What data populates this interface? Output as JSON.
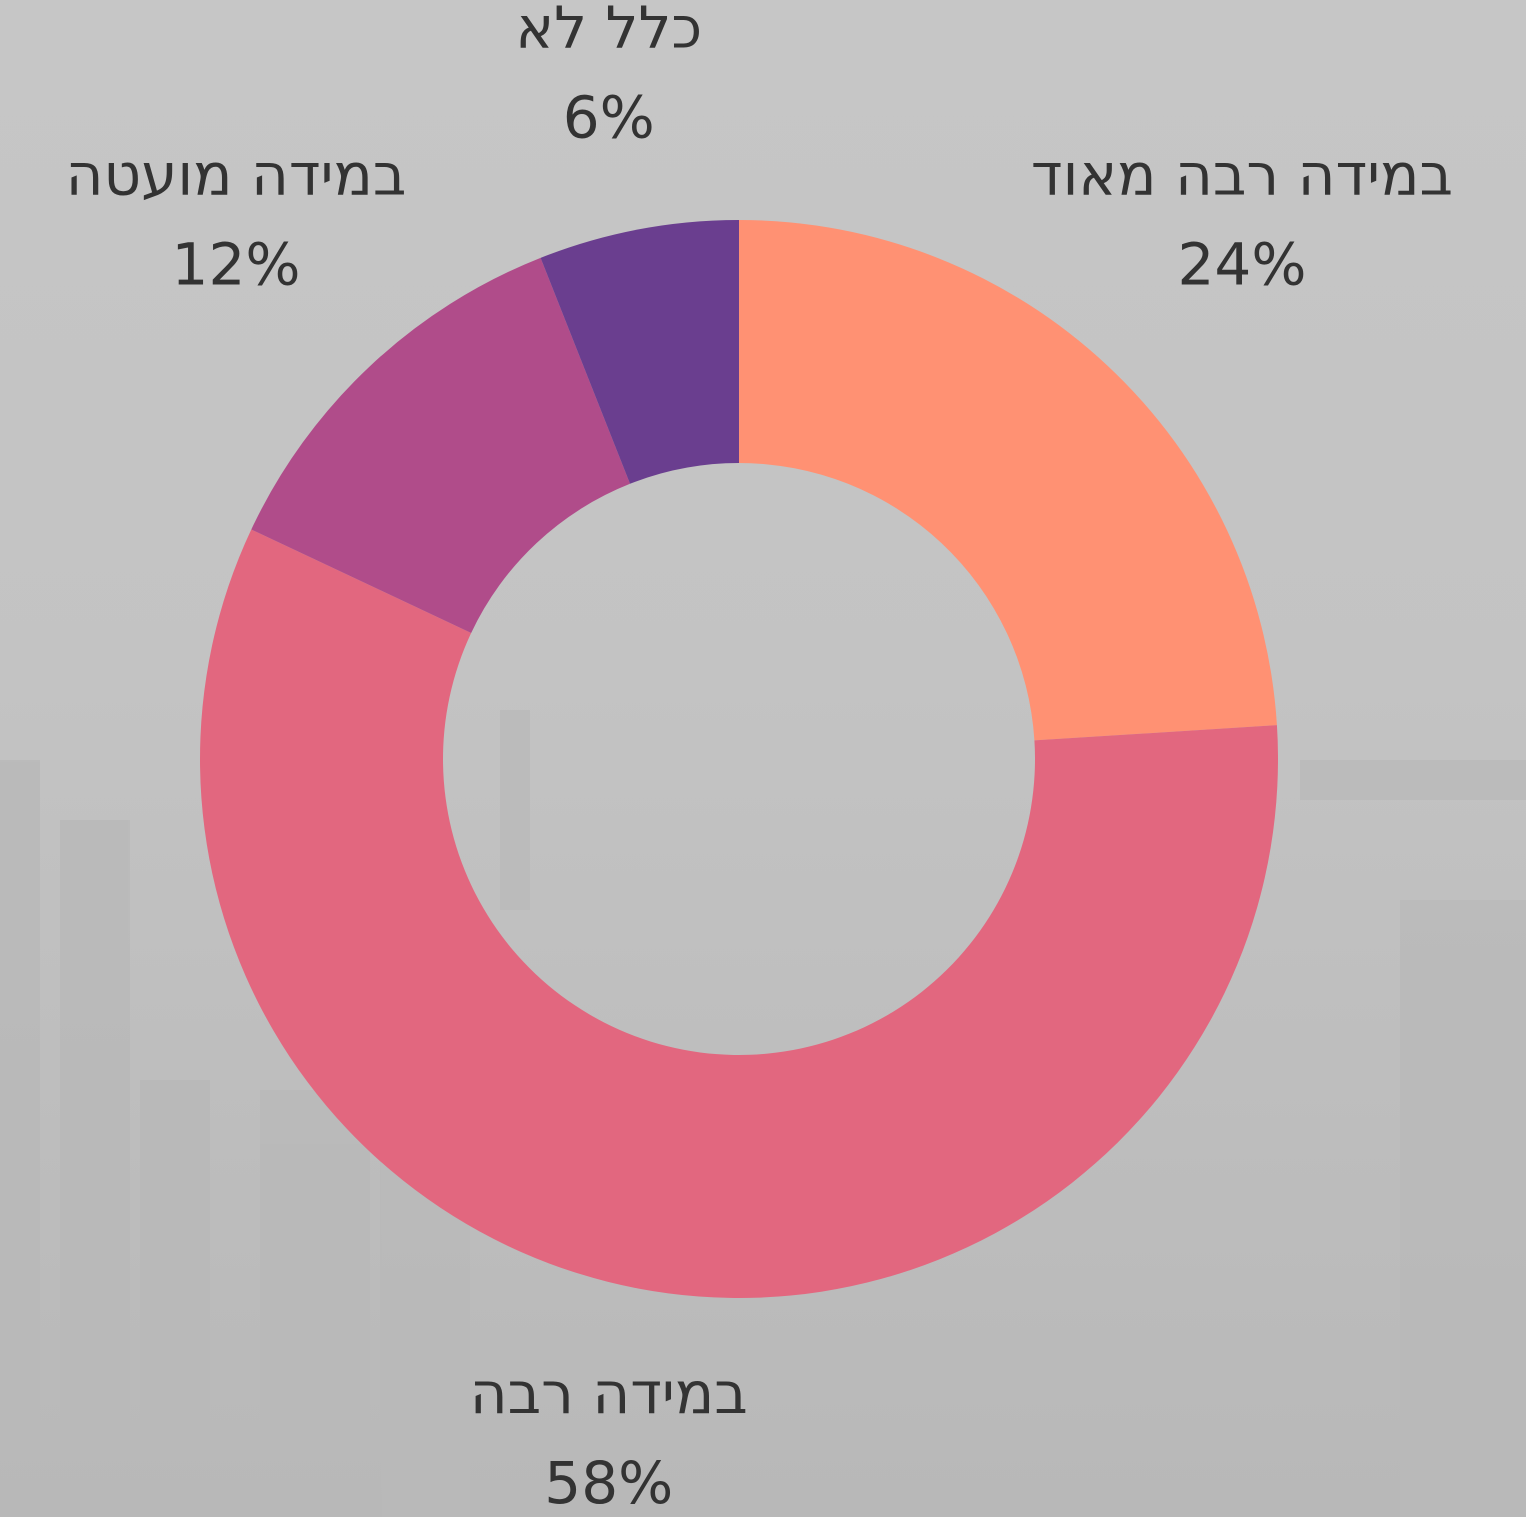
{
  "chart_data": {
    "type": "pie",
    "categories": [
      "במידה רבה מאוד",
      "במידה רבה",
      "במידה מועטה",
      "כלל לא"
    ],
    "values": [
      24,
      58,
      12,
      6
    ],
    "value_labels": [
      "24%",
      "58%",
      "12%",
      "6%"
    ],
    "colors": [
      "#FF9173",
      "#E2677F",
      "#B04C8A",
      "#6A3E8F"
    ]
  }
}
